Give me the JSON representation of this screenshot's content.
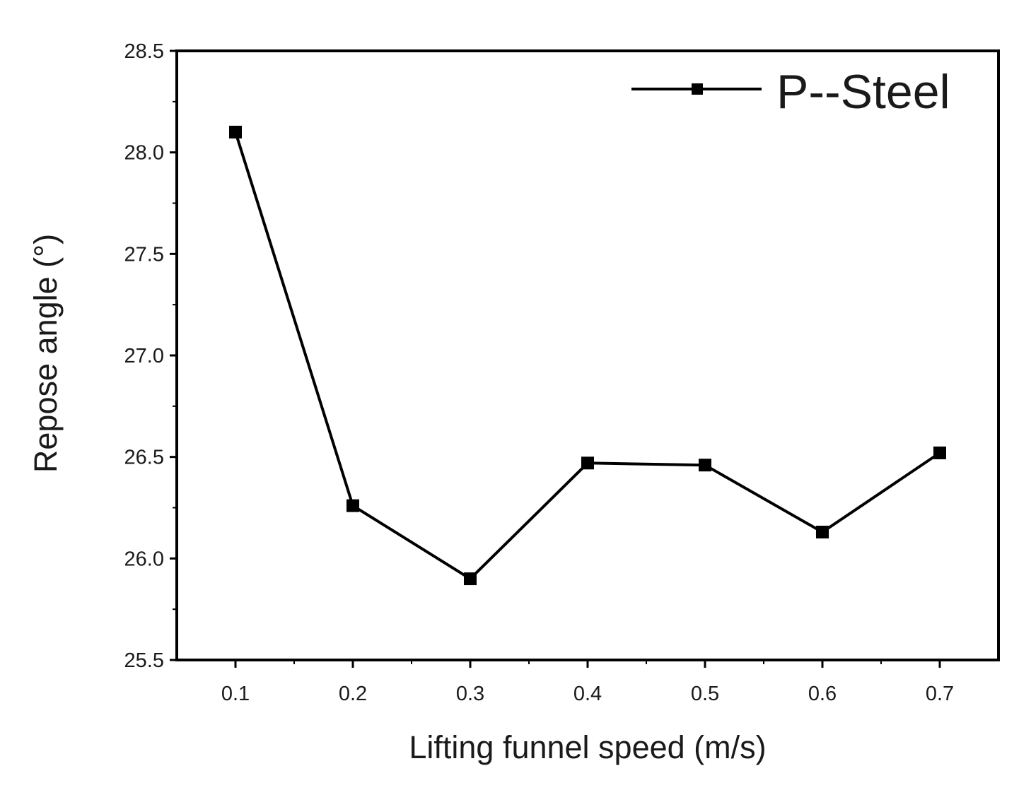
{
  "chart_data": {
    "type": "line",
    "title": "",
    "xlabel": "Lifting funnel speed (m/s)",
    "ylabel": "Repose angle (°)",
    "xlim": [
      0.05,
      0.75
    ],
    "ylim": [
      25.5,
      28.5
    ],
    "x_ticks": [
      "0.1",
      "0.2",
      "0.3",
      "0.4",
      "0.5",
      "0.6",
      "0.7"
    ],
    "y_ticks": [
      "25.5",
      "26.0",
      "26.5",
      "27.0",
      "27.5",
      "28.0",
      "28.5"
    ],
    "grid": false,
    "legend_position": "top-right",
    "series": [
      {
        "name": "P--Steel",
        "color": "#000000",
        "marker": "square",
        "x": [
          0.1,
          0.2,
          0.3,
          0.4,
          0.5,
          0.6,
          0.7
        ],
        "y": [
          28.1,
          26.26,
          25.9,
          26.47,
          26.46,
          26.13,
          26.52
        ]
      }
    ]
  }
}
